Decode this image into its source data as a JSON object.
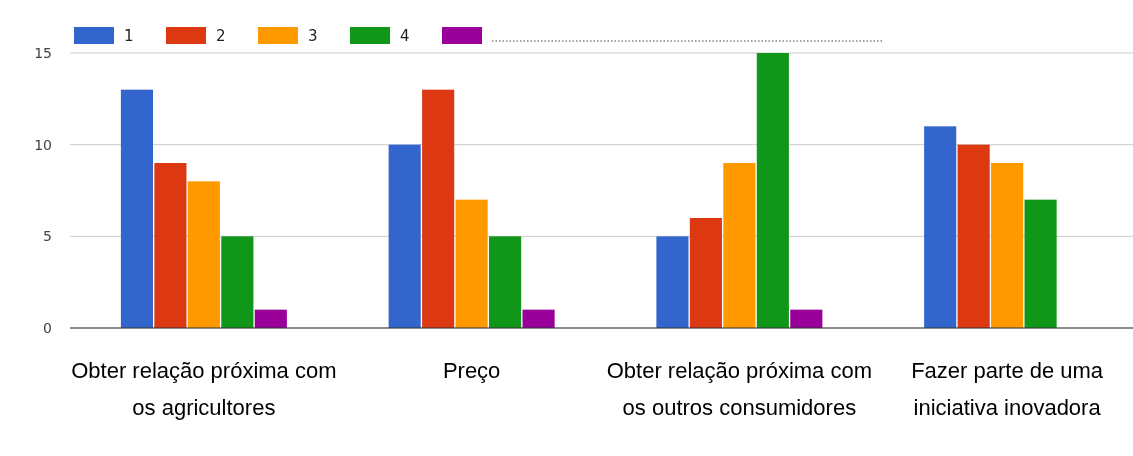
{
  "chart_data": {
    "type": "bar",
    "categories": [
      "Obter relação próxima com os agricultores",
      "Preço",
      "Obter relação próxima com os outros consumidores",
      "Fazer parte de uma iniciativa inovadora"
    ],
    "series": [
      {
        "name": "1",
        "color": "#3366cc",
        "values": [
          13,
          10,
          5,
          11
        ]
      },
      {
        "name": "2",
        "color": "#dc3912",
        "values": [
          9,
          13,
          6,
          10
        ]
      },
      {
        "name": "3",
        "color": "#ff9900",
        "values": [
          8,
          7,
          9,
          9
        ]
      },
      {
        "name": "4",
        "color": "#109618",
        "values": [
          5,
          5,
          15,
          7
        ]
      },
      {
        "color": "#990099",
        "values": [
          1,
          1,
          1,
          null
        ]
      }
    ],
    "ylim": [
      0,
      15
    ],
    "yticks": [
      0,
      5,
      10,
      15
    ],
    "grid": true,
    "legend": "top left"
  }
}
